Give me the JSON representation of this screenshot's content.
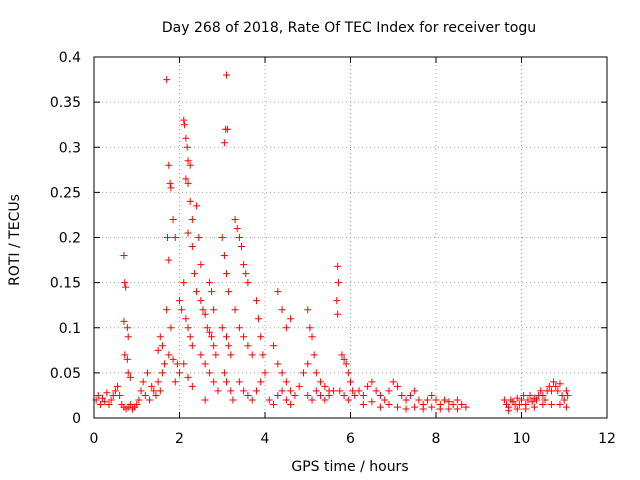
{
  "chart_data": {
    "type": "scatter",
    "title": "Day 268 of 2018, Rate Of TEC Index for receiver togu",
    "xlabel": "GPS time / hours",
    "ylabel": "ROTI / TECUs",
    "xlim": [
      0,
      12
    ],
    "ylim": [
      0,
      0.4
    ],
    "xticks": [
      0,
      2,
      4,
      6,
      8,
      10,
      12
    ],
    "yticks": [
      0,
      0.05,
      0.1,
      0.15,
      0.2,
      0.25,
      0.3,
      0.35,
      0.4
    ],
    "ytick_labels": [
      "0",
      "0.05",
      "0.1",
      "0.15",
      "0.2",
      "0.25",
      "0.3",
      "0.35",
      "0.4"
    ],
    "grid": true,
    "marker": "plus",
    "color": "#ff0000",
    "series": [
      {
        "name": "ROTI",
        "points": [
          [
            0.05,
            0.02
          ],
          [
            0.1,
            0.025
          ],
          [
            0.15,
            0.015
          ],
          [
            0.2,
            0.022
          ],
          [
            0.25,
            0.018
          ],
          [
            0.3,
            0.028
          ],
          [
            0.35,
            0.015
          ],
          [
            0.4,
            0.02
          ],
          [
            0.45,
            0.025
          ],
          [
            0.5,
            0.03
          ],
          [
            0.55,
            0.035
          ],
          [
            0.6,
            0.025
          ],
          [
            0.65,
            0.015
          ],
          [
            0.7,
            0.012
          ],
          [
            0.75,
            0.01
          ],
          [
            0.8,
            0.012
          ],
          [
            0.85,
            0.015
          ],
          [
            0.9,
            0.01
          ],
          [
            0.95,
            0.012
          ],
          [
            1.0,
            0.015
          ],
          [
            0.7,
            0.18
          ],
          [
            0.72,
            0.15
          ],
          [
            0.74,
            0.145
          ],
          [
            0.7,
            0.107
          ],
          [
            0.78,
            0.1
          ],
          [
            0.8,
            0.09
          ],
          [
            0.72,
            0.07
          ],
          [
            0.78,
            0.065
          ],
          [
            0.8,
            0.05
          ],
          [
            0.85,
            0.045
          ],
          [
            1.05,
            0.02
          ],
          [
            1.1,
            0.03
          ],
          [
            1.15,
            0.04
          ],
          [
            1.2,
            0.025
          ],
          [
            1.25,
            0.05
          ],
          [
            1.3,
            0.02
          ],
          [
            1.35,
            0.035
          ],
          [
            1.4,
            0.03
          ],
          [
            1.45,
            0.025
          ],
          [
            1.5,
            0.04
          ],
          [
            1.55,
            0.03
          ],
          [
            1.6,
            0.05
          ],
          [
            1.65,
            0.06
          ],
          [
            1.55,
            0.09
          ],
          [
            1.6,
            0.08
          ],
          [
            1.5,
            0.075
          ],
          [
            1.7,
            0.375
          ],
          [
            1.75,
            0.28
          ],
          [
            1.78,
            0.26
          ],
          [
            1.8,
            0.255
          ],
          [
            1.72,
            0.2
          ],
          [
            1.75,
            0.175
          ],
          [
            1.85,
            0.22
          ],
          [
            1.9,
            0.2
          ],
          [
            1.7,
            0.12
          ],
          [
            1.8,
            0.1
          ],
          [
            1.75,
            0.07
          ],
          [
            1.85,
            0.065
          ],
          [
            1.9,
            0.04
          ],
          [
            1.95,
            0.06
          ],
          [
            2.0,
            0.05
          ],
          [
            2.0,
            0.13
          ],
          [
            2.05,
            0.12
          ],
          [
            2.1,
            0.33
          ],
          [
            2.12,
            0.325
          ],
          [
            2.15,
            0.31
          ],
          [
            2.18,
            0.3
          ],
          [
            2.2,
            0.285
          ],
          [
            2.25,
            0.28
          ],
          [
            2.15,
            0.265
          ],
          [
            2.2,
            0.26
          ],
          [
            2.25,
            0.24
          ],
          [
            2.3,
            0.22
          ],
          [
            2.2,
            0.205
          ],
          [
            2.3,
            0.19
          ],
          [
            2.1,
            0.15
          ],
          [
            2.15,
            0.11
          ],
          [
            2.2,
            0.1
          ],
          [
            2.25,
            0.09
          ],
          [
            2.3,
            0.08
          ],
          [
            2.1,
            0.06
          ],
          [
            2.2,
            0.045
          ],
          [
            2.3,
            0.035
          ],
          [
            2.4,
            0.235
          ],
          [
            2.45,
            0.2
          ],
          [
            2.5,
            0.17
          ],
          [
            2.35,
            0.16
          ],
          [
            2.4,
            0.14
          ],
          [
            2.5,
            0.13
          ],
          [
            2.55,
            0.12
          ],
          [
            2.6,
            0.115
          ],
          [
            2.65,
            0.1
          ],
          [
            2.7,
            0.095
          ],
          [
            2.75,
            0.09
          ],
          [
            2.8,
            0.08
          ],
          [
            2.85,
            0.07
          ],
          [
            2.5,
            0.07
          ],
          [
            2.6,
            0.06
          ],
          [
            2.7,
            0.05
          ],
          [
            2.8,
            0.04
          ],
          [
            2.9,
            0.03
          ],
          [
            2.6,
            0.02
          ],
          [
            2.7,
            0.15
          ],
          [
            2.75,
            0.14
          ],
          [
            2.8,
            0.12
          ],
          [
            3.1,
            0.38
          ],
          [
            3.08,
            0.32
          ],
          [
            3.12,
            0.32
          ],
          [
            3.05,
            0.305
          ],
          [
            3.0,
            0.2
          ],
          [
            3.05,
            0.18
          ],
          [
            3.1,
            0.16
          ],
          [
            3.15,
            0.14
          ],
          [
            3.0,
            0.1
          ],
          [
            3.1,
            0.09
          ],
          [
            3.15,
            0.08
          ],
          [
            3.2,
            0.07
          ],
          [
            3.05,
            0.05
          ],
          [
            3.1,
            0.04
          ],
          [
            3.2,
            0.03
          ],
          [
            3.25,
            0.02
          ],
          [
            3.3,
            0.22
          ],
          [
            3.35,
            0.21
          ],
          [
            3.4,
            0.2
          ],
          [
            3.45,
            0.19
          ],
          [
            3.5,
            0.17
          ],
          [
            3.55,
            0.16
          ],
          [
            3.6,
            0.15
          ],
          [
            3.3,
            0.12
          ],
          [
            3.4,
            0.1
          ],
          [
            3.5,
            0.09
          ],
          [
            3.6,
            0.08
          ],
          [
            3.7,
            0.07
          ],
          [
            3.8,
            0.13
          ],
          [
            3.85,
            0.11
          ],
          [
            3.9,
            0.09
          ],
          [
            3.95,
            0.07
          ],
          [
            3.4,
            0.04
          ],
          [
            3.5,
            0.03
          ],
          [
            3.6,
            0.025
          ],
          [
            3.7,
            0.02
          ],
          [
            3.8,
            0.03
          ],
          [
            3.9,
            0.04
          ],
          [
            4.0,
            0.05
          ],
          [
            4.3,
            0.14
          ],
          [
            4.4,
            0.12
          ],
          [
            4.5,
            0.1
          ],
          [
            4.6,
            0.11
          ],
          [
            4.2,
            0.08
          ],
          [
            4.3,
            0.06
          ],
          [
            4.4,
            0.05
          ],
          [
            4.5,
            0.04
          ],
          [
            4.6,
            0.03
          ],
          [
            4.7,
            0.025
          ],
          [
            4.8,
            0.035
          ],
          [
            4.9,
            0.05
          ],
          [
            4.1,
            0.02
          ],
          [
            4.2,
            0.015
          ],
          [
            4.3,
            0.025
          ],
          [
            4.4,
            0.03
          ],
          [
            4.5,
            0.02
          ],
          [
            4.6,
            0.015
          ],
          [
            5.0,
            0.12
          ],
          [
            5.05,
            0.1
          ],
          [
            5.1,
            0.09
          ],
          [
            5.15,
            0.07
          ],
          [
            5.0,
            0.06
          ],
          [
            5.2,
            0.05
          ],
          [
            5.3,
            0.04
          ],
          [
            5.4,
            0.035
          ],
          [
            5.5,
            0.03
          ],
          [
            5.0,
            0.025
          ],
          [
            5.1,
            0.02
          ],
          [
            5.2,
            0.03
          ],
          [
            5.3,
            0.025
          ],
          [
            5.4,
            0.02
          ],
          [
            5.5,
            0.025
          ],
          [
            5.6,
            0.03
          ],
          [
            5.7,
            0.168
          ],
          [
            5.72,
            0.15
          ],
          [
            5.68,
            0.13
          ],
          [
            5.7,
            0.115
          ],
          [
            5.8,
            0.07
          ],
          [
            5.85,
            0.065
          ],
          [
            5.9,
            0.06
          ],
          [
            5.95,
            0.05
          ],
          [
            6.0,
            0.04
          ],
          [
            5.75,
            0.03
          ],
          [
            5.85,
            0.025
          ],
          [
            5.95,
            0.02
          ],
          [
            6.05,
            0.03
          ],
          [
            6.1,
            0.025
          ],
          [
            6.2,
            0.03
          ],
          [
            6.3,
            0.025
          ],
          [
            6.4,
            0.035
          ],
          [
            6.5,
            0.04
          ],
          [
            6.6,
            0.03
          ],
          [
            6.7,
            0.025
          ],
          [
            6.8,
            0.02
          ],
          [
            6.9,
            0.03
          ],
          [
            7.0,
            0.04
          ],
          [
            7.1,
            0.035
          ],
          [
            7.2,
            0.025
          ],
          [
            7.3,
            0.02
          ],
          [
            7.4,
            0.025
          ],
          [
            7.5,
            0.03
          ],
          [
            7.6,
            0.02
          ],
          [
            7.7,
            0.015
          ],
          [
            7.8,
            0.02
          ],
          [
            7.9,
            0.025
          ],
          [
            8.0,
            0.02
          ],
          [
            8.1,
            0.015
          ],
          [
            8.2,
            0.02
          ],
          [
            8.3,
            0.018
          ],
          [
            8.4,
            0.015
          ],
          [
            8.5,
            0.02
          ],
          [
            8.6,
            0.015
          ],
          [
            8.7,
            0.012
          ],
          [
            6.3,
            0.015
          ],
          [
            6.5,
            0.018
          ],
          [
            6.7,
            0.012
          ],
          [
            6.9,
            0.015
          ],
          [
            7.1,
            0.012
          ],
          [
            7.3,
            0.01
          ],
          [
            7.5,
            0.012
          ],
          [
            7.7,
            0.01
          ],
          [
            7.9,
            0.012
          ],
          [
            8.1,
            0.01
          ],
          [
            8.3,
            0.01
          ],
          [
            8.5,
            0.01
          ],
          [
            9.6,
            0.02
          ],
          [
            9.65,
            0.015
          ],
          [
            9.7,
            0.012
          ],
          [
            9.75,
            0.02
          ],
          [
            9.8,
            0.018
          ],
          [
            9.85,
            0.015
          ],
          [
            9.9,
            0.022
          ],
          [
            9.95,
            0.015
          ],
          [
            10.0,
            0.02
          ],
          [
            10.05,
            0.025
          ],
          [
            10.1,
            0.015
          ],
          [
            10.15,
            0.02
          ],
          [
            10.2,
            0.025
          ],
          [
            10.25,
            0.018
          ],
          [
            10.3,
            0.022
          ],
          [
            10.35,
            0.02
          ],
          [
            10.4,
            0.025
          ],
          [
            10.45,
            0.03
          ],
          [
            10.5,
            0.025
          ],
          [
            10.55,
            0.02
          ],
          [
            10.6,
            0.03
          ],
          [
            10.65,
            0.035
          ],
          [
            10.7,
            0.03
          ],
          [
            10.75,
            0.04
          ],
          [
            10.8,
            0.035
          ],
          [
            10.85,
            0.03
          ],
          [
            10.9,
            0.038
          ],
          [
            10.95,
            0.025
          ],
          [
            11.0,
            0.02
          ],
          [
            11.05,
            0.03
          ],
          [
            11.08,
            0.025
          ],
          [
            9.7,
            0.008
          ],
          [
            9.9,
            0.01
          ],
          [
            10.1,
            0.01
          ],
          [
            10.3,
            0.012
          ],
          [
            10.5,
            0.015
          ],
          [
            10.7,
            0.015
          ],
          [
            10.9,
            0.015
          ],
          [
            11.05,
            0.012
          ]
        ]
      }
    ]
  }
}
